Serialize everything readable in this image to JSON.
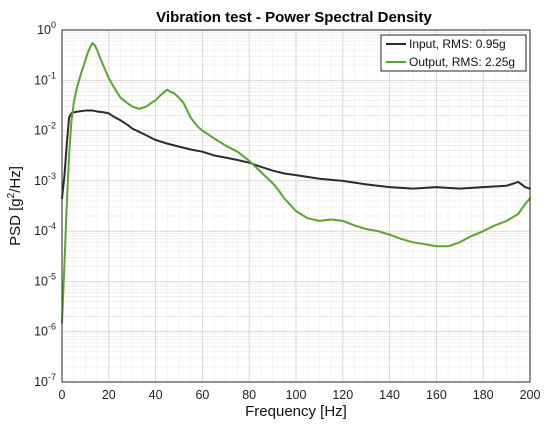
{
  "chart_data": {
    "type": "line",
    "title": "Vibration test - Power Spectral Density",
    "xlabel": "Frequency [Hz]",
    "ylabel_main": "PSD  [g",
    "ylabel_sup": "2",
    "ylabel_tail": "/Hz]",
    "xscale": "linear",
    "yscale": "log",
    "xlim": [
      0,
      200
    ],
    "ylim": [
      1e-07,
      1
    ],
    "x_ticks": [
      0,
      20,
      40,
      60,
      80,
      100,
      120,
      140,
      160,
      180,
      200
    ],
    "y_tick_exponents": [
      -7,
      -6,
      -5,
      -4,
      -3,
      -2,
      -1,
      0
    ],
    "grid": true,
    "legend_position": "top-right",
    "series": [
      {
        "name": "Input, RMS: 0.95g",
        "color": "#2b2b2b",
        "x": [
          0,
          1,
          2,
          3,
          4,
          5,
          7,
          10,
          13,
          15,
          18,
          20,
          22,
          25,
          28,
          30,
          35,
          40,
          45,
          50,
          55,
          60,
          65,
          70,
          75,
          80,
          85,
          90,
          95,
          100,
          110,
          120,
          130,
          140,
          150,
          160,
          170,
          180,
          190,
          195,
          198,
          200
        ],
        "y": [
          0.00045,
          0.0012,
          0.005,
          0.018,
          0.022,
          0.023,
          0.024,
          0.025,
          0.025,
          0.024,
          0.023,
          0.022,
          0.019,
          0.016,
          0.013,
          0.011,
          0.0085,
          0.0065,
          0.0055,
          0.0048,
          0.0042,
          0.0038,
          0.0032,
          0.0029,
          0.0026,
          0.0023,
          0.0019,
          0.0016,
          0.0014,
          0.0013,
          0.0011,
          0.001,
          0.00085,
          0.00075,
          0.0007,
          0.00075,
          0.0007,
          0.00075,
          0.0008,
          0.00095,
          0.00075,
          0.0007
        ]
      },
      {
        "name": "Output, RMS: 2.25g",
        "color": "#5aa62c",
        "x": [
          0,
          1,
          2,
          3,
          4,
          5,
          6,
          7,
          8,
          9,
          10,
          11,
          12,
          13,
          14,
          15,
          16,
          18,
          20,
          22,
          25,
          28,
          30,
          33,
          36,
          38,
          40,
          42,
          44,
          45,
          46,
          48,
          50,
          52,
          55,
          58,
          60,
          65,
          70,
          75,
          80,
          85,
          88,
          90,
          92,
          95,
          100,
          105,
          110,
          115,
          120,
          125,
          130,
          135,
          140,
          145,
          150,
          155,
          160,
          165,
          170,
          175,
          180,
          185,
          190,
          195,
          198,
          200
        ],
        "y": [
          1.5e-06,
          2e-05,
          0.0003,
          0.003,
          0.015,
          0.035,
          0.06,
          0.09,
          0.13,
          0.18,
          0.25,
          0.35,
          0.45,
          0.55,
          0.5,
          0.4,
          0.3,
          0.18,
          0.11,
          0.075,
          0.045,
          0.035,
          0.03,
          0.027,
          0.03,
          0.035,
          0.04,
          0.05,
          0.06,
          0.065,
          0.06,
          0.055,
          0.045,
          0.035,
          0.018,
          0.012,
          0.01,
          0.007,
          0.005,
          0.0038,
          0.0025,
          0.0015,
          0.0011,
          0.0009,
          0.0007,
          0.00045,
          0.00025,
          0.00018,
          0.00016,
          0.00017,
          0.00016,
          0.00013,
          0.00011,
          0.0001,
          8.5e-05,
          7e-05,
          6e-05,
          5.5e-05,
          5e-05,
          5e-05,
          6e-05,
          8e-05,
          0.0001,
          0.00013,
          0.00016,
          0.00022,
          0.00035,
          0.00045
        ]
      }
    ]
  }
}
